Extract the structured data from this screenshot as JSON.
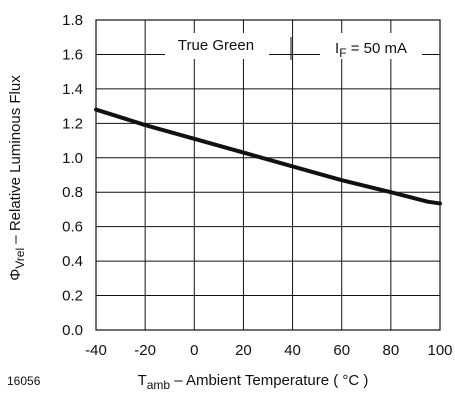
{
  "figure_id": "16056",
  "chart_data": {
    "type": "line",
    "x": [
      -40,
      -20,
      0,
      20,
      40,
      60,
      80,
      95,
      100
    ],
    "series": [
      {
        "values": [
          1.28,
          1.19,
          1.11,
          1.03,
          0.95,
          0.87,
          0.8,
          0.745,
          0.735
        ]
      }
    ],
    "xlim": [
      -40,
      100
    ],
    "ylim": [
      0,
      1.8
    ],
    "xticks": [
      -40,
      -20,
      0,
      20,
      40,
      60,
      80,
      100
    ],
    "yticks": [
      0.0,
      0.2,
      0.4,
      0.6,
      0.8,
      1.0,
      1.2,
      1.4,
      1.6,
      1.8
    ],
    "xtick_labels": [
      "-40",
      "-20",
      "0",
      "20",
      "40",
      "60",
      "80",
      "100"
    ],
    "ytick_labels": [
      "0.0",
      "0.2",
      "0.4",
      "0.6",
      "0.8",
      "1.0",
      "1.2",
      "1.4",
      "1.6",
      "1.8"
    ],
    "xlabel": {
      "symbol": "T",
      "subscript": "amb",
      "text": " – Ambient Temperature ( °C )"
    },
    "ylabel": {
      "symbol": "Φ",
      "subscript": "Vrel",
      "text": " – Relative Luminous Flux"
    },
    "annotations": [
      {
        "label": "True Green"
      },
      {
        "symbol": "I",
        "subscript": "F",
        "text": " = 50 mA"
      }
    ],
    "grid": true,
    "legend": "none",
    "line_color": "#111111",
    "grid_color": "#111111"
  }
}
